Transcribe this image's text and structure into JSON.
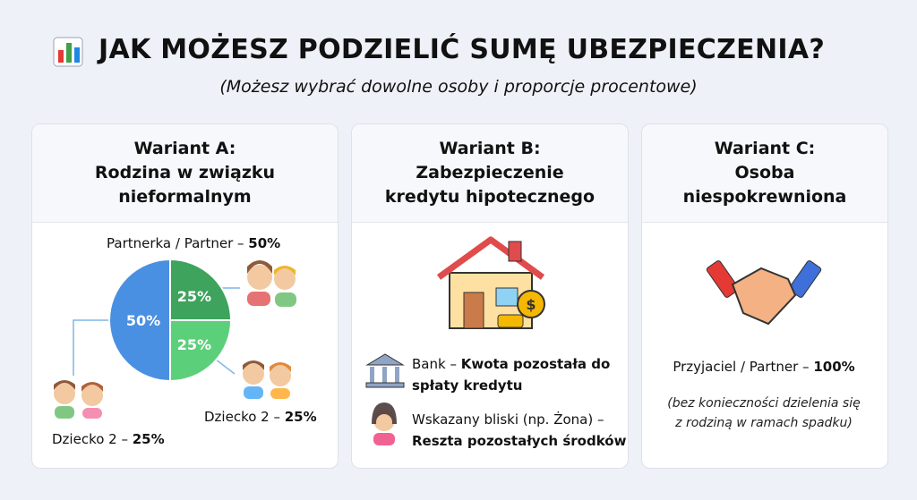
{
  "header": {
    "title": "JAK MOŻESZ PODZIELIĆ SUMĘ UBEZPIECZENIA?",
    "subtitle": "(Możesz wybrać dowolne osoby i proporcje procentowe)"
  },
  "cards": [
    {
      "heading": [
        "Wariant A:",
        "Rodzina w związku",
        "nieformalnym"
      ],
      "pie": {
        "values": [
          50,
          25,
          25
        ],
        "value_labels": [
          "50%",
          "25%",
          "25%"
        ],
        "colors": [
          "#4a90e2",
          "#3ea35c",
          "#5ccf7b"
        ]
      },
      "labels": [
        {
          "text": "Partnerka / Partner – ",
          "bold": "50%"
        },
        {
          "text": "Dziecko 2 – ",
          "bold": "25%"
        },
        {
          "text": "Dziecko 2 – ",
          "bold": "25%"
        }
      ]
    },
    {
      "heading": [
        "Wariant B:",
        "Zabezpieczenie",
        "kredytu hipotecznego"
      ],
      "items": [
        {
          "text": "Bank – ",
          "bold": "Kwota pozostała do spłaty kredytu"
        },
        {
          "text": "Wskazany bliski (np. Żona) –",
          "bold": "Reszta pozostałych środków"
        }
      ]
    },
    {
      "heading": [
        "Wariant C:",
        "Osoba",
        "niespokrewniona"
      ],
      "labels": [
        {
          "text": "Przyjaciel / Partner – ",
          "bold": "100%"
        }
      ],
      "note": [
        "(bez konieczności dzielenia się",
        "z rodziną w ramach spadku)"
      ]
    }
  ]
}
